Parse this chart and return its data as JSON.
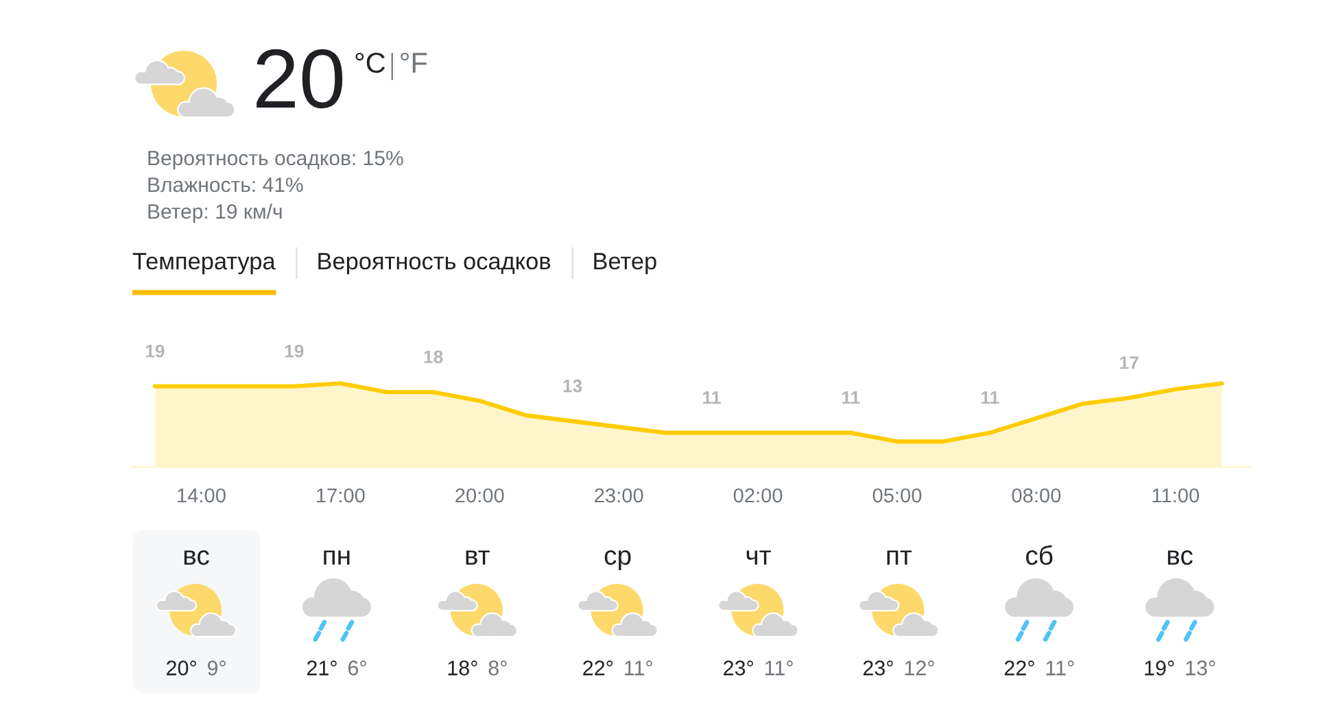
{
  "chart_data": [
    {
      "type": "other",
      "annotations": [
        "20",
        "°C",
        "°F",
        "Вероятность осадков: 15%",
        "Влажность: 41%",
        "Ветер: 19 км/ч",
        "Температура",
        "Вероятность осадков",
        "Ветер"
      ]
    },
    {
      "type": "area",
      "categories": [
        null,
        "14:00",
        null,
        null,
        "17:00",
        null,
        null,
        "20:00",
        null,
        null,
        "23:00",
        null,
        null,
        "02:00",
        null,
        null,
        "05:00",
        null,
        null,
        "08:00",
        null,
        null,
        "11:00",
        null
      ],
      "values": [
        19,
        19,
        19,
        19,
        19.5,
        18,
        18,
        16.5,
        14,
        13,
        12,
        11,
        11,
        11,
        11,
        11,
        9.5,
        9.5,
        11,
        13.5,
        16,
        17,
        18.5,
        19.5
      ],
      "value_labels": [
        "19",
        null,
        null,
        "19",
        null,
        null,
        "18",
        null,
        null,
        "13",
        null,
        null,
        "11",
        null,
        null,
        "11",
        null,
        null,
        "11",
        null,
        null,
        "17",
        null,
        null
      ],
      "color": "#ffcc00",
      "tick_labels": "x"
    },
    {
      "type": "other",
      "annotations": [
        "вс",
        "20°",
        "9°",
        "пн",
        "21°",
        "6°",
        "вт",
        "18°",
        "8°",
        "ср",
        "22°",
        "11°",
        "чт",
        "23°",
        "11°",
        "пт",
        "23°",
        "12°",
        "сб",
        "22°",
        "11°",
        "вс",
        "19°",
        "13°"
      ]
    }
  ]
}
